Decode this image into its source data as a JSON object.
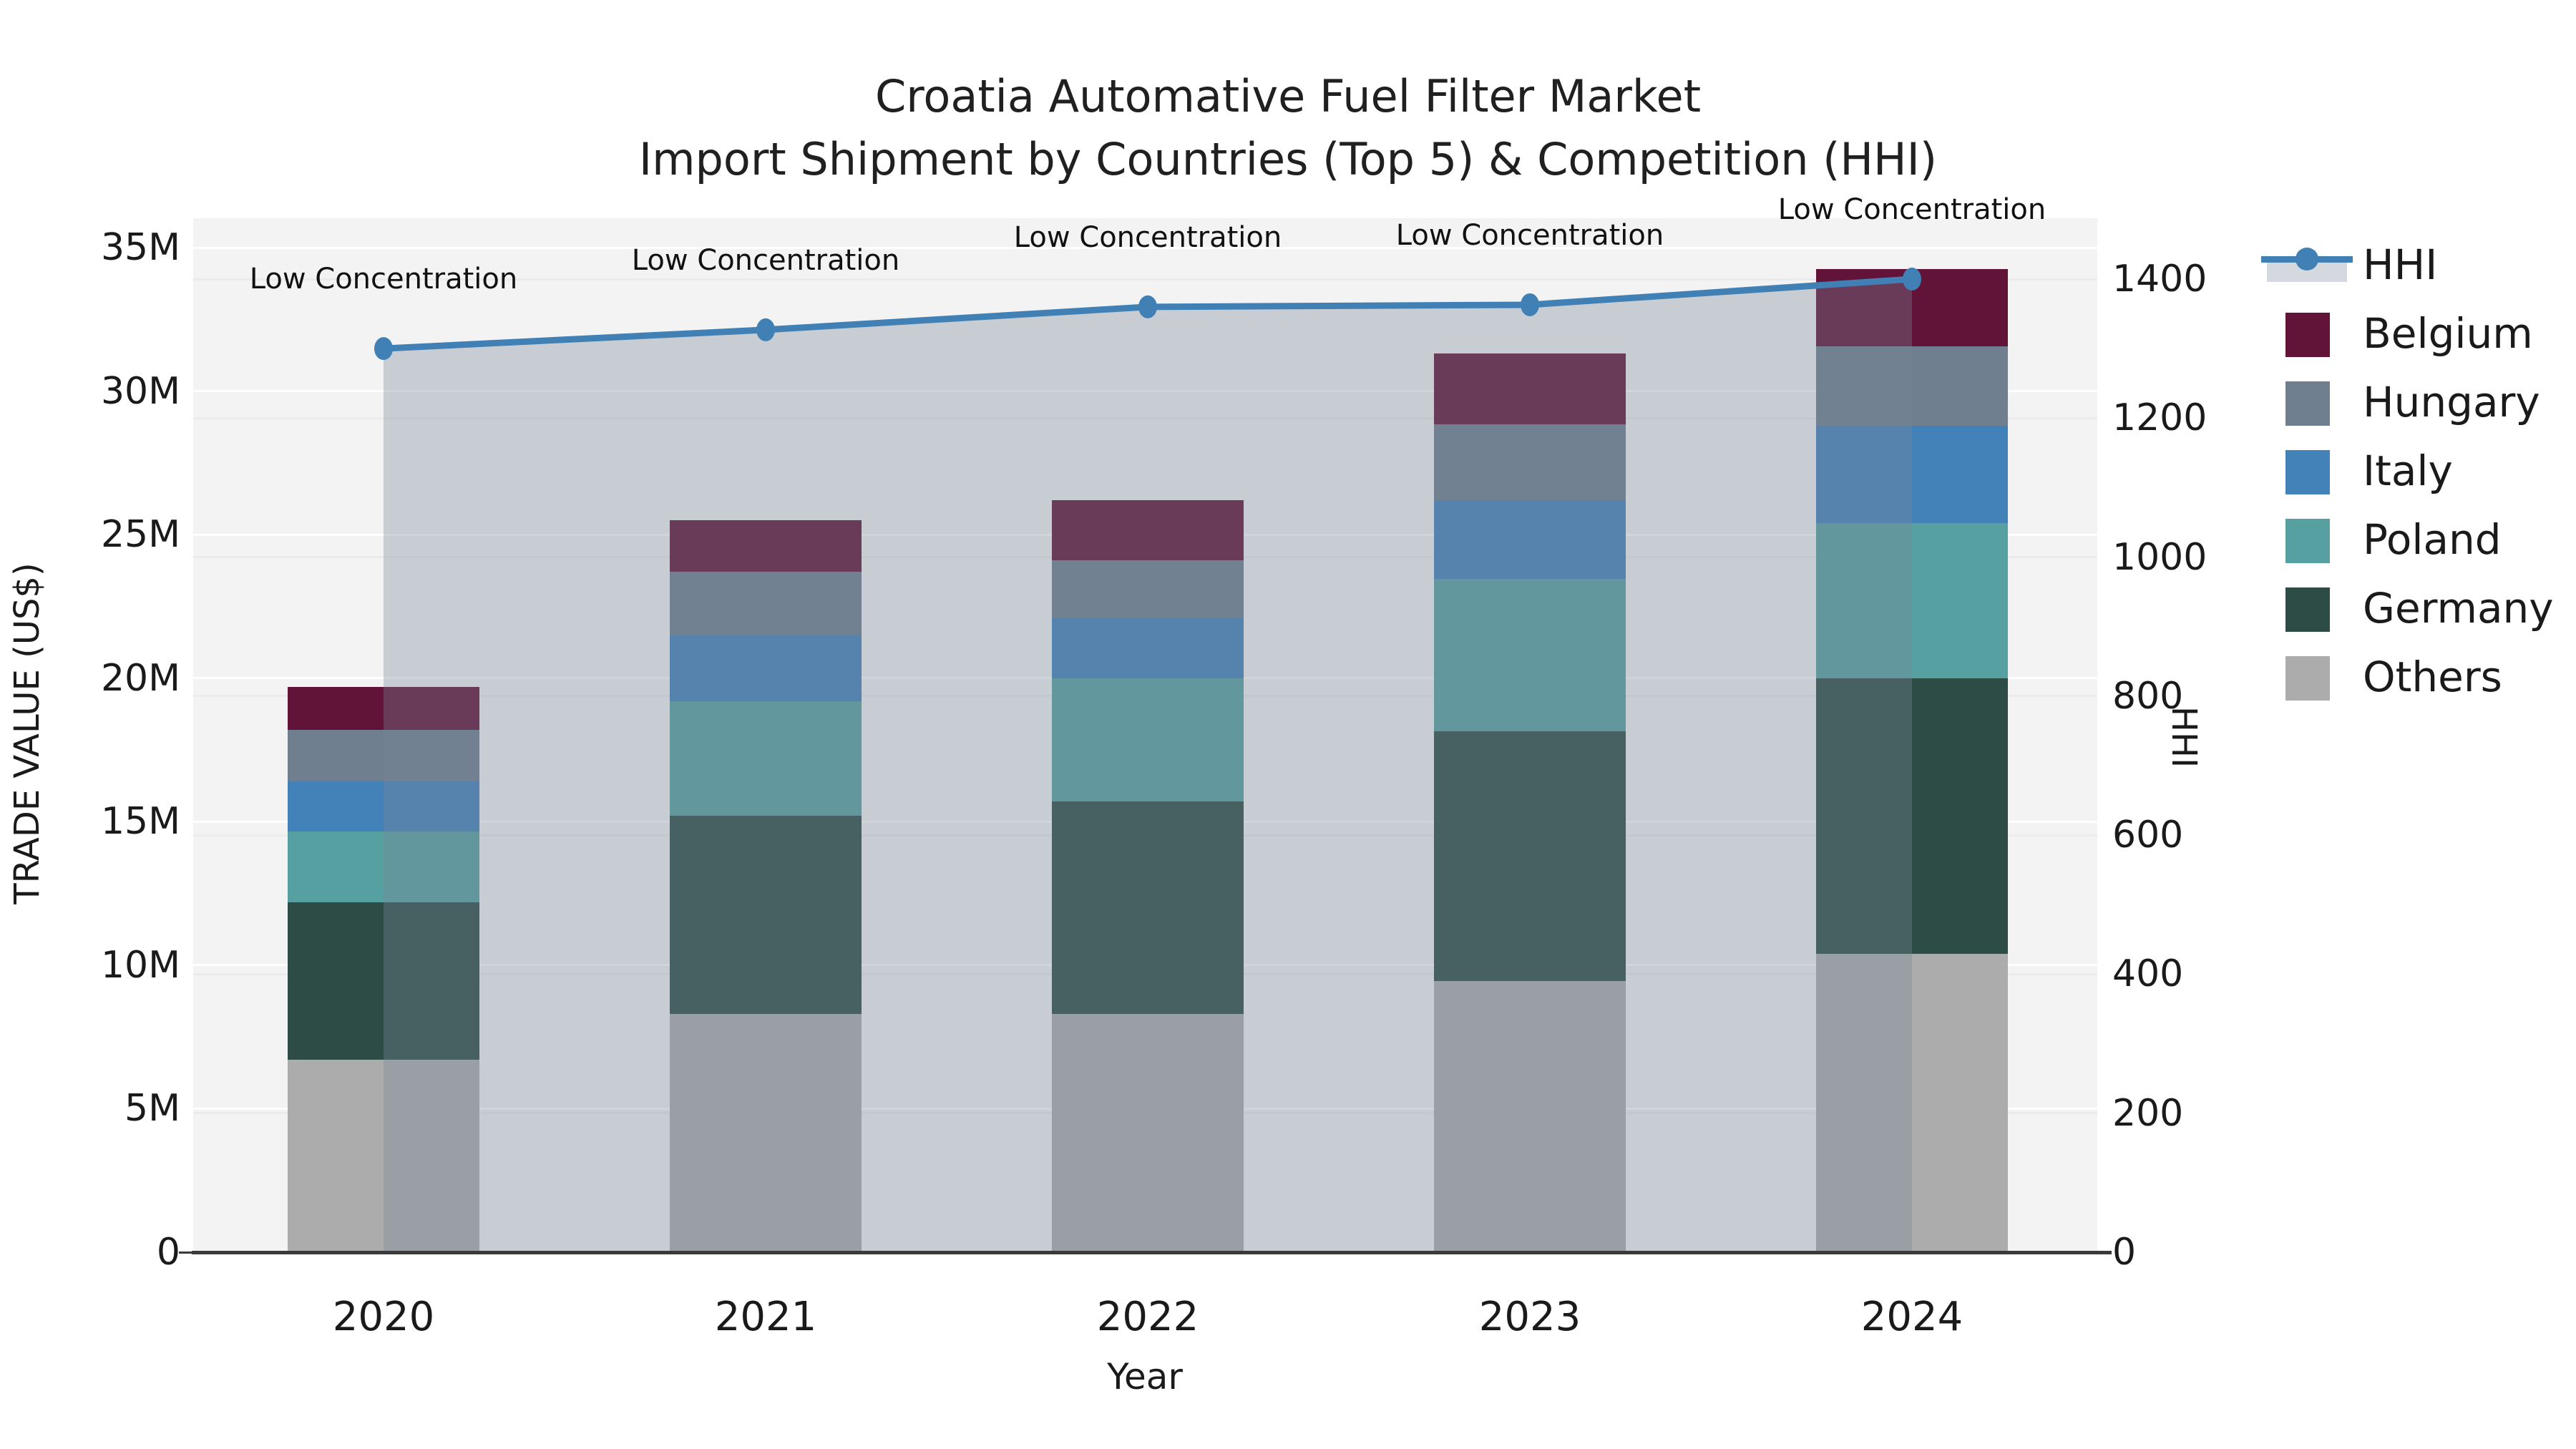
{
  "title": {
    "line1": "Croatia Automative Fuel Filter Market",
    "line2": "Import Shipment by Countries (Top 5) & Competition (HHI)"
  },
  "axes": {
    "left": {
      "label": "TRADE VALUE (US$)",
      "tick_values": [
        0,
        5,
        10,
        15,
        20,
        25,
        30,
        35
      ],
      "tick_labels": [
        "0",
        "5M",
        "10M",
        "15M",
        "20M",
        "25M",
        "30M",
        "35M"
      ],
      "max": 35
    },
    "right": {
      "label": "HHI",
      "tick_values": [
        0,
        200,
        400,
        600,
        800,
        1000,
        1200,
        1400
      ],
      "tick_labels": [
        "0",
        "200",
        "400",
        "600",
        "800",
        "1000",
        "1200",
        "1400"
      ],
      "max": 1400
    },
    "x": {
      "label": "Year"
    }
  },
  "chart_data": {
    "type": "bar",
    "subtype": "stacked-bars-with-line",
    "categories": [
      "2020",
      "2021",
      "2022",
      "2023",
      "2024"
    ],
    "stack_order": [
      "Others",
      "Germany",
      "Poland",
      "Italy",
      "Hungary",
      "Belgium"
    ],
    "series": [
      {
        "name": "Belgium",
        "color": "#611338",
        "values": [
          1.5,
          1.8,
          2.1,
          2.45,
          2.7
        ]
      },
      {
        "name": "Hungary",
        "color": "#6f7f8f",
        "values": [
          1.8,
          2.2,
          2.0,
          2.65,
          2.75
        ]
      },
      {
        "name": "Italy",
        "color": "#4382b8",
        "values": [
          1.75,
          2.3,
          2.1,
          2.75,
          3.4
        ]
      },
      {
        "name": "Poland",
        "color": "#57a0a2",
        "values": [
          2.45,
          4.0,
          4.3,
          5.3,
          5.4
        ]
      },
      {
        "name": "Germany",
        "color": "#2d4c46",
        "values": [
          5.5,
          6.9,
          7.4,
          8.7,
          9.6
        ]
      },
      {
        "name": "Others",
        "color": "#acacac",
        "values": [
          6.7,
          8.3,
          8.3,
          9.45,
          10.4
        ]
      }
    ],
    "line": {
      "name": "HHI",
      "color": "#4080b5",
      "fill_color": "rgba(119,136,153,0.35)",
      "values": [
        1300,
        1327,
        1360,
        1363,
        1400
      ]
    },
    "annotations": [
      "Low Concentration",
      "Low Concentration",
      "Low Concentration",
      "Low Concentration",
      "Low Concentration"
    ],
    "ylim_left": [
      0,
      35
    ],
    "ylim_right": [
      0,
      1400
    ],
    "units_left": "M US$",
    "grid": true,
    "legend_position": "right-top"
  },
  "legend": {
    "items": [
      {
        "label": "HHI",
        "type": "line",
        "color": "#4080b5",
        "band_color": "#d3d9de"
      },
      {
        "label": "Belgium",
        "type": "patch",
        "color": "#611338"
      },
      {
        "label": "Hungary",
        "type": "patch",
        "color": "#6f7f8f"
      },
      {
        "label": "Italy",
        "type": "patch",
        "color": "#4382b8"
      },
      {
        "label": "Poland",
        "type": "patch",
        "color": "#57a0a2"
      },
      {
        "label": "Germany",
        "type": "patch",
        "color": "#2d4c46"
      },
      {
        "label": "Others",
        "type": "patch",
        "color": "#acacac"
      }
    ]
  }
}
